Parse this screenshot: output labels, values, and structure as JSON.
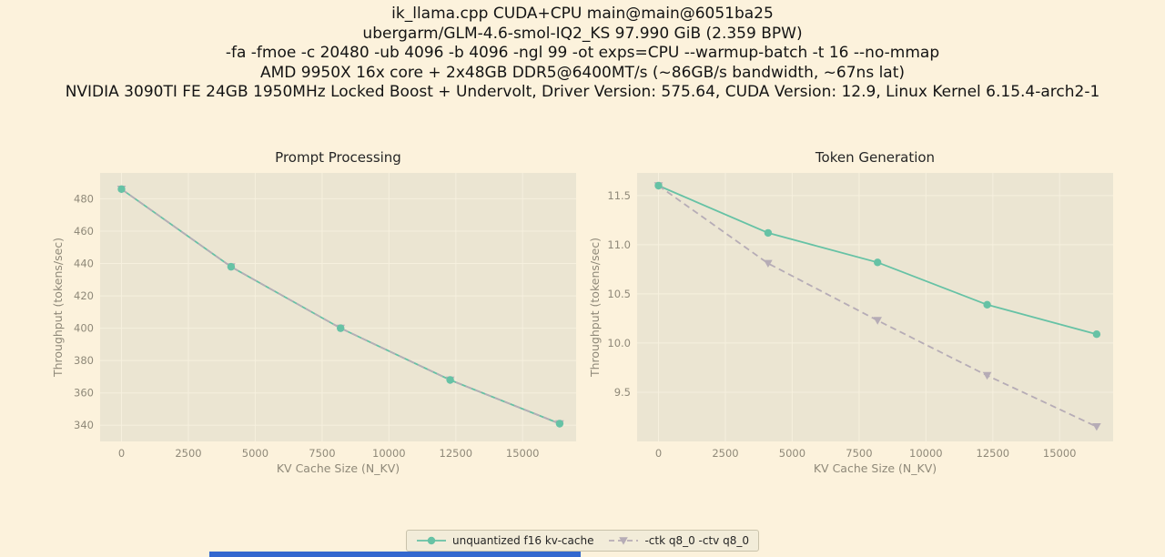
{
  "header": {
    "lines": [
      "ik_llama.cpp CUDA+CPU main@main@6051ba25",
      "ubergarm/GLM-4.6-smol-IQ2_KS 97.990 GiB (2.359 BPW)",
      "-fa -fmoe -c 20480 -ub 4096 -b 4096 -ngl 99 -ot exps=CPU --warmup-batch -t 16 --no-mmap",
      "AMD 9950X 16x core + 2x48GB DDR5@6400MT/s (~86GB/s bandwidth, ~67ns lat)",
      "NVIDIA 3090TI FE 24GB 1950MHz Locked Boost + Undervolt, Driver Version: 575.64, CUDA Version: 12.9, Linux Kernel 6.15.4-arch2-1"
    ]
  },
  "chart_data": [
    {
      "type": "line",
      "title": "Prompt Processing",
      "xlabel": "KV Cache Size (N_KV)",
      "ylabel": "Throughput (tokens/sec)",
      "x": [
        0,
        4096,
        8192,
        12288,
        16384
      ],
      "xlim": [
        -800,
        17000
      ],
      "ylim": [
        330,
        496
      ],
      "xticks": [
        0,
        2500,
        5000,
        7500,
        10000,
        12500,
        15000
      ],
      "xtick_labels": [
        "0",
        "2500",
        "5000",
        "7500",
        "10000",
        "12500",
        "15000"
      ],
      "yticks": [
        340,
        360,
        380,
        400,
        420,
        440,
        460,
        480
      ],
      "ytick_labels": [
        "340",
        "360",
        "380",
        "400",
        "420",
        "440",
        "460",
        "480"
      ],
      "grid": true,
      "legend_position": "bottom-center",
      "series": [
        {
          "name": "unquantized f16 kv-cache",
          "color": "#66c2a5",
          "style": "solid",
          "marker": "circle",
          "values": [
            486,
            438,
            400,
            368,
            341
          ]
        },
        {
          "name": "-ctk q8_0 -ctv q8_0",
          "color": "#b6acb6",
          "style": "dashed",
          "marker": "triangle-down",
          "values": [
            486,
            438,
            400,
            368,
            341
          ]
        }
      ]
    },
    {
      "type": "line",
      "title": "Token Generation",
      "xlabel": "KV Cache Size (N_KV)",
      "ylabel": "Throughput (tokens/sec)",
      "x": [
        0,
        4096,
        8192,
        12288,
        16384
      ],
      "xlim": [
        -800,
        17000
      ],
      "ylim": [
        9.0,
        11.73
      ],
      "xticks": [
        0,
        2500,
        5000,
        7500,
        10000,
        12500,
        15000
      ],
      "xtick_labels": [
        "0",
        "2500",
        "5000",
        "7500",
        "10000",
        "12500",
        "15000"
      ],
      "yticks": [
        9.5,
        10.0,
        10.5,
        11.0,
        11.5
      ],
      "ytick_labels": [
        "9.5",
        "10.0",
        "10.5",
        "11.0",
        "11.5"
      ],
      "grid": true,
      "legend_position": "bottom-center",
      "series": [
        {
          "name": "unquantized f16 kv-cache",
          "color": "#66c2a5",
          "style": "solid",
          "marker": "circle",
          "values": [
            11.6,
            11.12,
            10.82,
            10.39,
            10.09
          ]
        },
        {
          "name": "-ctk q8_0 -ctv q8_0",
          "color": "#b6acb6",
          "style": "dashed",
          "marker": "triangle-down",
          "values": [
            11.6,
            10.81,
            10.23,
            9.67,
            9.15
          ]
        }
      ]
    }
  ],
  "legend": {
    "items": [
      {
        "label": "unquantized f16 kv-cache",
        "color": "#66c2a5",
        "style": "solid",
        "marker": "circle"
      },
      {
        "label": "-ctk q8_0 -ctv q8_0",
        "color": "#b6acb6",
        "style": "dashed",
        "marker": "triangle-down"
      }
    ]
  },
  "colors": {
    "figure_bg": "#fcf2dc",
    "axes_bg": "#ebe5d2",
    "grid": "#f6f0de",
    "title_text": "#262626",
    "axis_text": "#8f8979",
    "header_text": "#141414",
    "legend_bg": "#f2ecd9",
    "legend_border": "#c9c2ab",
    "bottom_strip": "#3368cf"
  }
}
